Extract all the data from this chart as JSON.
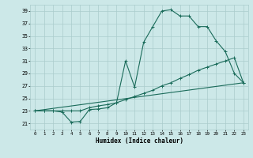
{
  "xlabel": "Humidex (Indice chaleur)",
  "bg_color": "#cce8e8",
  "grid_color": "#aacccc",
  "line_color": "#1a6b5a",
  "xlim": [
    -0.5,
    23.5
  ],
  "ylim": [
    20,
    40
  ],
  "xticks": [
    0,
    1,
    2,
    3,
    4,
    5,
    6,
    7,
    8,
    9,
    10,
    11,
    12,
    13,
    14,
    15,
    16,
    17,
    18,
    19,
    20,
    21,
    22,
    23
  ],
  "yticks": [
    21,
    23,
    25,
    27,
    29,
    31,
    33,
    35,
    37,
    39
  ],
  "line1_x": [
    0,
    1,
    2,
    3,
    4,
    5,
    6,
    7,
    8,
    9,
    10,
    11,
    12,
    13,
    14,
    15,
    16,
    17,
    18,
    19,
    20,
    21,
    22,
    23
  ],
  "line1_y": [
    23,
    23,
    23,
    22.8,
    21.2,
    21.3,
    23.2,
    23.3,
    23.5,
    24.3,
    31.0,
    26.8,
    34.0,
    36.5,
    39.0,
    39.2,
    38.2,
    38.2,
    36.5,
    36.5,
    34.2,
    32.5,
    29.0,
    27.5
  ],
  "line2_x": [
    0,
    1,
    2,
    3,
    4,
    5,
    6,
    7,
    8,
    9,
    10,
    11,
    12,
    13,
    14,
    15,
    16,
    17,
    18,
    19,
    20,
    21,
    22,
    23
  ],
  "line2_y": [
    23,
    23,
    23,
    23,
    23,
    23,
    23.5,
    23.8,
    24.0,
    24.3,
    24.8,
    25.3,
    25.8,
    26.3,
    27.0,
    27.5,
    28.2,
    28.8,
    29.5,
    30.0,
    30.5,
    31.0,
    31.5,
    27.5
  ],
  "line3_x": [
    0,
    23
  ],
  "line3_y": [
    23,
    27.5
  ]
}
